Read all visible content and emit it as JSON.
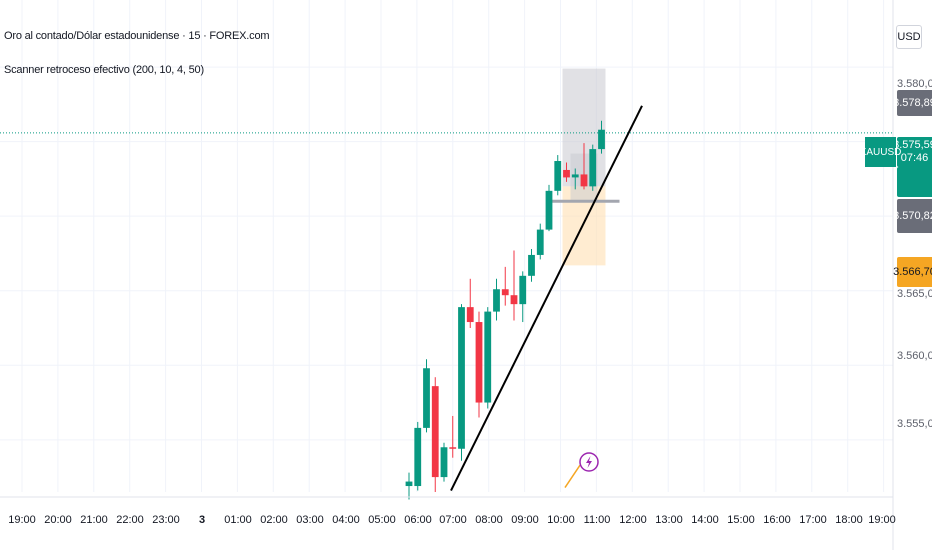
{
  "header": {
    "title": "Oro al contado/Dólar estadounidense · 15 · FOREX.com",
    "indicator": "Scanner retroceso efectivo (200, 10, 4, 50)"
  },
  "currency_button": "USD",
  "symbol_tag": "XAUUSD",
  "price_tags": {
    "top": "3.578,89",
    "current": "3.575,59",
    "countdown": "07:46",
    "low": "3.570,82",
    "orange": "3.566,70"
  },
  "colors": {
    "up": "#089981",
    "down": "#f23645",
    "price_line": "#089981",
    "trendline": "#000000",
    "box_gray": "#c8c9cf",
    "box_orange": "#ffe0b2",
    "tag_gray": "#6a6d78",
    "tag_orange": "#f5a623",
    "grid": "#f0f3fa",
    "lightning": "#9c27b0"
  },
  "icons": {
    "lightning": "lightning-icon"
  },
  "chart_data": {
    "type": "candlestick",
    "title": "Oro al contado/Dólar estadounidense · 15 · FOREX.com",
    "symbol": "XAUUSD",
    "interval": "15",
    "ylim": [
      3551.5,
      3584.5
    ],
    "y_ticks": [
      "3.580,00",
      "3.575,00",
      "3.570,00",
      "3.565,00",
      "3.560,00",
      "3.555,00"
    ],
    "y_tick_values": [
      3580,
      3575,
      3570,
      3565,
      3560,
      3555
    ],
    "x_ticks": [
      "19:00",
      "20:00",
      "21:00",
      "22:00",
      "23:00",
      "3",
      "01:00",
      "02:00",
      "03:00",
      "04:00",
      "05:00",
      "06:00",
      "07:00",
      "08:00",
      "09:00",
      "10:00",
      "11:00",
      "12:00",
      "13:00",
      "14:00",
      "15:00",
      "16:00",
      "17:00",
      "18:00",
      "19:00",
      "20:00"
    ],
    "current_price": 3575.59,
    "candles": [
      {
        "o": 3551.9,
        "h": 3552.8,
        "l": 3551.0,
        "c": 3552.2
      },
      {
        "o": 3551.9,
        "h": 3556.2,
        "l": 3551.6,
        "c": 3555.8
      },
      {
        "o": 3555.8,
        "h": 3560.4,
        "l": 3555.5,
        "c": 3559.8
      },
      {
        "o": 3558.6,
        "h": 3559.2,
        "l": 3551.5,
        "c": 3552.5
      },
      {
        "o": 3552.5,
        "h": 3554.8,
        "l": 3552.2,
        "c": 3554.5
      },
      {
        "o": 3554.5,
        "h": 3556.6,
        "l": 3553.8,
        "c": 3554.4
      },
      {
        "o": 3554.4,
        "h": 3564.1,
        "l": 3553.6,
        "c": 3563.9
      },
      {
        "o": 3563.9,
        "h": 3565.8,
        "l": 3562.5,
        "c": 3562.9
      },
      {
        "o": 3562.9,
        "h": 3563.6,
        "l": 3556.5,
        "c": 3557.5
      },
      {
        "o": 3557.5,
        "h": 3563.9,
        "l": 3557.1,
        "c": 3563.6
      },
      {
        "o": 3563.6,
        "h": 3565.8,
        "l": 3563.0,
        "c": 3565.1
      },
      {
        "o": 3565.1,
        "h": 3566.6,
        "l": 3564.0,
        "c": 3564.7
      },
      {
        "o": 3564.7,
        "h": 3567.7,
        "l": 3563.0,
        "c": 3564.1
      },
      {
        "o": 3564.1,
        "h": 3566.3,
        "l": 3562.9,
        "c": 3566.0
      },
      {
        "o": 3566.0,
        "h": 3567.8,
        "l": 3565.6,
        "c": 3567.4
      },
      {
        "o": 3567.4,
        "h": 3569.5,
        "l": 3567.1,
        "c": 3569.1
      },
      {
        "o": 3569.1,
        "h": 3572.1,
        "l": 3569.0,
        "c": 3571.7
      },
      {
        "o": 3571.7,
        "h": 3574.1,
        "l": 3571.4,
        "c": 3573.7
      },
      {
        "o": 3573.1,
        "h": 3573.6,
        "l": 3572.3,
        "c": 3572.6
      },
      {
        "o": 3572.6,
        "h": 3573.2,
        "l": 3571.8,
        "c": 3572.8
      },
      {
        "o": 3572.8,
        "h": 3574.9,
        "l": 3571.8,
        "c": 3572.0
      },
      {
        "o": 3572.0,
        "h": 3574.8,
        "l": 3571.7,
        "c": 3574.5
      },
      {
        "o": 3574.5,
        "h": 3576.4,
        "l": 3574.2,
        "c": 3575.8
      }
    ]
  }
}
